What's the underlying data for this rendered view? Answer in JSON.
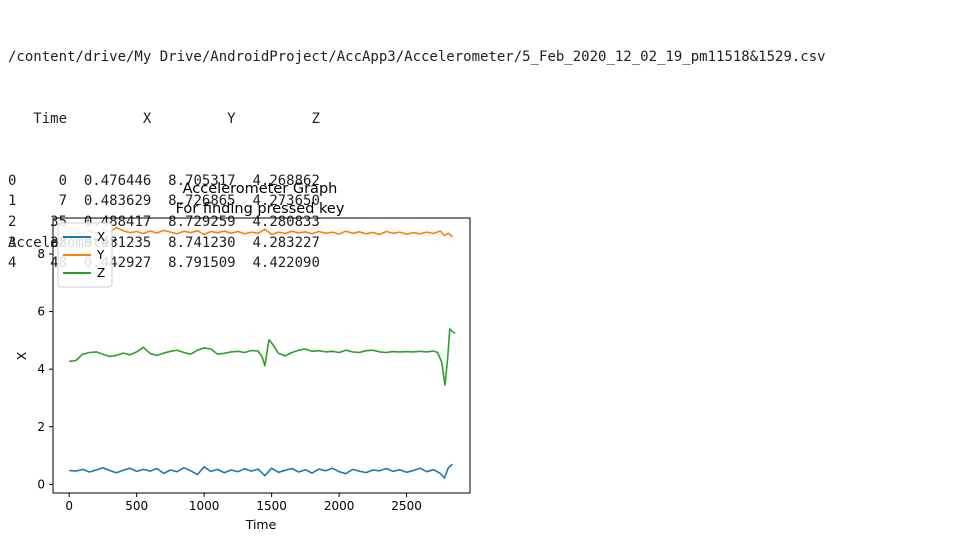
{
  "output": {
    "path": "/content/drive/My Drive/AndroidProject/AccApp3/Accelerometer/5_Feb_2020_12_02_19_pm11518&1529.csv",
    "table": {
      "columns": [
        "Time",
        "X",
        "Y",
        "Z"
      ],
      "rows": [
        {
          "index": "0",
          "Time": "0",
          "X": "0.476446",
          "Y": "8.705317",
          "Z": "4.268862"
        },
        {
          "index": "1",
          "Time": "7",
          "X": "0.483629",
          "Y": "8.726865",
          "Z": "4.273650"
        },
        {
          "index": "2",
          "Time": "35",
          "X": "0.488417",
          "Y": "8.729259",
          "Z": "4.280833"
        },
        {
          "index": "3",
          "Time": "38",
          "X": "0.481235",
          "Y": "8.741230",
          "Z": "4.283227"
        },
        {
          "index": "4",
          "Time": "48",
          "X": "0.442927",
          "Y": "8.791509",
          "Z": "4.422090"
        }
      ]
    },
    "label": "Accelerometer"
  },
  "chart_data": {
    "type": "line",
    "title": "Accelerometer Graph",
    "subtitle": "For finding pressed key",
    "xlabel": "Time",
    "ylabel": "X",
    "xlim": [
      -120,
      2970
    ],
    "ylim": [
      -0.3,
      9.25
    ],
    "xticks": [
      0,
      500,
      1000,
      1500,
      2000,
      2500
    ],
    "yticks": [
      0,
      2,
      4,
      6,
      8
    ],
    "legend": "upper-left",
    "grid": false,
    "series": [
      {
        "name": "X",
        "color": "#1f77b4",
        "points": [
          [
            0,
            0.48
          ],
          [
            50,
            0.46
          ],
          [
            100,
            0.52
          ],
          [
            150,
            0.43
          ],
          [
            200,
            0.5
          ],
          [
            250,
            0.58
          ],
          [
            300,
            0.48
          ],
          [
            350,
            0.4
          ],
          [
            400,
            0.49
          ],
          [
            450,
            0.56
          ],
          [
            500,
            0.45
          ],
          [
            550,
            0.52
          ],
          [
            600,
            0.46
          ],
          [
            650,
            0.55
          ],
          [
            700,
            0.38
          ],
          [
            750,
            0.5
          ],
          [
            800,
            0.44
          ],
          [
            850,
            0.58
          ],
          [
            900,
            0.47
          ],
          [
            950,
            0.34
          ],
          [
            1000,
            0.61
          ],
          [
            1050,
            0.45
          ],
          [
            1100,
            0.52
          ],
          [
            1150,
            0.4
          ],
          [
            1200,
            0.5
          ],
          [
            1250,
            0.44
          ],
          [
            1300,
            0.54
          ],
          [
            1350,
            0.46
          ],
          [
            1400,
            0.53
          ],
          [
            1450,
            0.3
          ],
          [
            1500,
            0.56
          ],
          [
            1550,
            0.42
          ],
          [
            1600,
            0.49
          ],
          [
            1650,
            0.55
          ],
          [
            1700,
            0.43
          ],
          [
            1750,
            0.51
          ],
          [
            1800,
            0.39
          ],
          [
            1850,
            0.53
          ],
          [
            1900,
            0.47
          ],
          [
            1950,
            0.56
          ],
          [
            2000,
            0.44
          ],
          [
            2050,
            0.37
          ],
          [
            2100,
            0.52
          ],
          [
            2150,
            0.46
          ],
          [
            2200,
            0.41
          ],
          [
            2250,
            0.5
          ],
          [
            2300,
            0.47
          ],
          [
            2350,
            0.55
          ],
          [
            2400,
            0.45
          ],
          [
            2450,
            0.51
          ],
          [
            2500,
            0.42
          ],
          [
            2550,
            0.48
          ],
          [
            2600,
            0.56
          ],
          [
            2650,
            0.44
          ],
          [
            2700,
            0.51
          ],
          [
            2750,
            0.38
          ],
          [
            2780,
            0.22
          ],
          [
            2810,
            0.58
          ],
          [
            2840,
            0.7
          ]
        ]
      },
      {
        "name": "Y",
        "color": "#ff7f0e",
        "points": [
          [
            0,
            8.71
          ],
          [
            50,
            8.72
          ],
          [
            100,
            8.74
          ],
          [
            150,
            8.79
          ],
          [
            200,
            8.72
          ],
          [
            250,
            8.84
          ],
          [
            300,
            8.76
          ],
          [
            350,
            8.92
          ],
          [
            400,
            8.81
          ],
          [
            450,
            8.74
          ],
          [
            500,
            8.78
          ],
          [
            550,
            8.71
          ],
          [
            600,
            8.8
          ],
          [
            650,
            8.73
          ],
          [
            700,
            8.82
          ],
          [
            750,
            8.76
          ],
          [
            800,
            8.7
          ],
          [
            850,
            8.79
          ],
          [
            900,
            8.74
          ],
          [
            950,
            8.81
          ],
          [
            1000,
            8.68
          ],
          [
            1050,
            8.78
          ],
          [
            1100,
            8.74
          ],
          [
            1150,
            8.8
          ],
          [
            1200,
            8.72
          ],
          [
            1250,
            8.78
          ],
          [
            1300,
            8.7
          ],
          [
            1350,
            8.76
          ],
          [
            1400,
            8.72
          ],
          [
            1450,
            8.86
          ],
          [
            1500,
            8.68
          ],
          [
            1550,
            8.76
          ],
          [
            1600,
            8.71
          ],
          [
            1650,
            8.79
          ],
          [
            1700,
            8.73
          ],
          [
            1750,
            8.77
          ],
          [
            1800,
            8.7
          ],
          [
            1850,
            8.78
          ],
          [
            1900,
            8.72
          ],
          [
            1950,
            8.76
          ],
          [
            2000,
            8.69
          ],
          [
            2050,
            8.79
          ],
          [
            2100,
            8.72
          ],
          [
            2150,
            8.77
          ],
          [
            2200,
            8.7
          ],
          [
            2250,
            8.75
          ],
          [
            2300,
            8.68
          ],
          [
            2350,
            8.78
          ],
          [
            2400,
            8.72
          ],
          [
            2450,
            8.76
          ],
          [
            2500,
            8.69
          ],
          [
            2550,
            8.74
          ],
          [
            2600,
            8.7
          ],
          [
            2650,
            8.76
          ],
          [
            2700,
            8.71
          ],
          [
            2750,
            8.8
          ],
          [
            2780,
            8.64
          ],
          [
            2810,
            8.72
          ],
          [
            2840,
            8.6
          ]
        ]
      },
      {
        "name": "Z",
        "color": "#2ca02c",
        "points": [
          [
            0,
            4.27
          ],
          [
            50,
            4.3
          ],
          [
            100,
            4.52
          ],
          [
            150,
            4.58
          ],
          [
            200,
            4.6
          ],
          [
            250,
            4.52
          ],
          [
            300,
            4.44
          ],
          [
            350,
            4.48
          ],
          [
            400,
            4.56
          ],
          [
            450,
            4.5
          ],
          [
            500,
            4.6
          ],
          [
            550,
            4.76
          ],
          [
            600,
            4.54
          ],
          [
            650,
            4.48
          ],
          [
            700,
            4.56
          ],
          [
            750,
            4.62
          ],
          [
            800,
            4.66
          ],
          [
            850,
            4.58
          ],
          [
            900,
            4.52
          ],
          [
            950,
            4.66
          ],
          [
            1000,
            4.74
          ],
          [
            1050,
            4.7
          ],
          [
            1100,
            4.52
          ],
          [
            1150,
            4.55
          ],
          [
            1200,
            4.6
          ],
          [
            1250,
            4.62
          ],
          [
            1300,
            4.58
          ],
          [
            1350,
            4.65
          ],
          [
            1400,
            4.63
          ],
          [
            1430,
            4.42
          ],
          [
            1450,
            4.12
          ],
          [
            1480,
            5.02
          ],
          [
            1510,
            4.85
          ],
          [
            1550,
            4.55
          ],
          [
            1600,
            4.46
          ],
          [
            1650,
            4.58
          ],
          [
            1700,
            4.66
          ],
          [
            1750,
            4.7
          ],
          [
            1800,
            4.62
          ],
          [
            1850,
            4.64
          ],
          [
            1900,
            4.6
          ],
          [
            1950,
            4.62
          ],
          [
            2000,
            4.58
          ],
          [
            2050,
            4.66
          ],
          [
            2100,
            4.6
          ],
          [
            2150,
            4.58
          ],
          [
            2200,
            4.64
          ],
          [
            2250,
            4.66
          ],
          [
            2300,
            4.6
          ],
          [
            2350,
            4.58
          ],
          [
            2400,
            4.61
          ],
          [
            2450,
            4.6
          ],
          [
            2500,
            4.61
          ],
          [
            2550,
            4.6
          ],
          [
            2600,
            4.62
          ],
          [
            2650,
            4.6
          ],
          [
            2700,
            4.63
          ],
          [
            2730,
            4.58
          ],
          [
            2760,
            4.25
          ],
          [
            2785,
            3.45
          ],
          [
            2805,
            4.4
          ],
          [
            2820,
            5.4
          ],
          [
            2840,
            5.3
          ],
          [
            2860,
            5.25
          ]
        ]
      }
    ]
  }
}
